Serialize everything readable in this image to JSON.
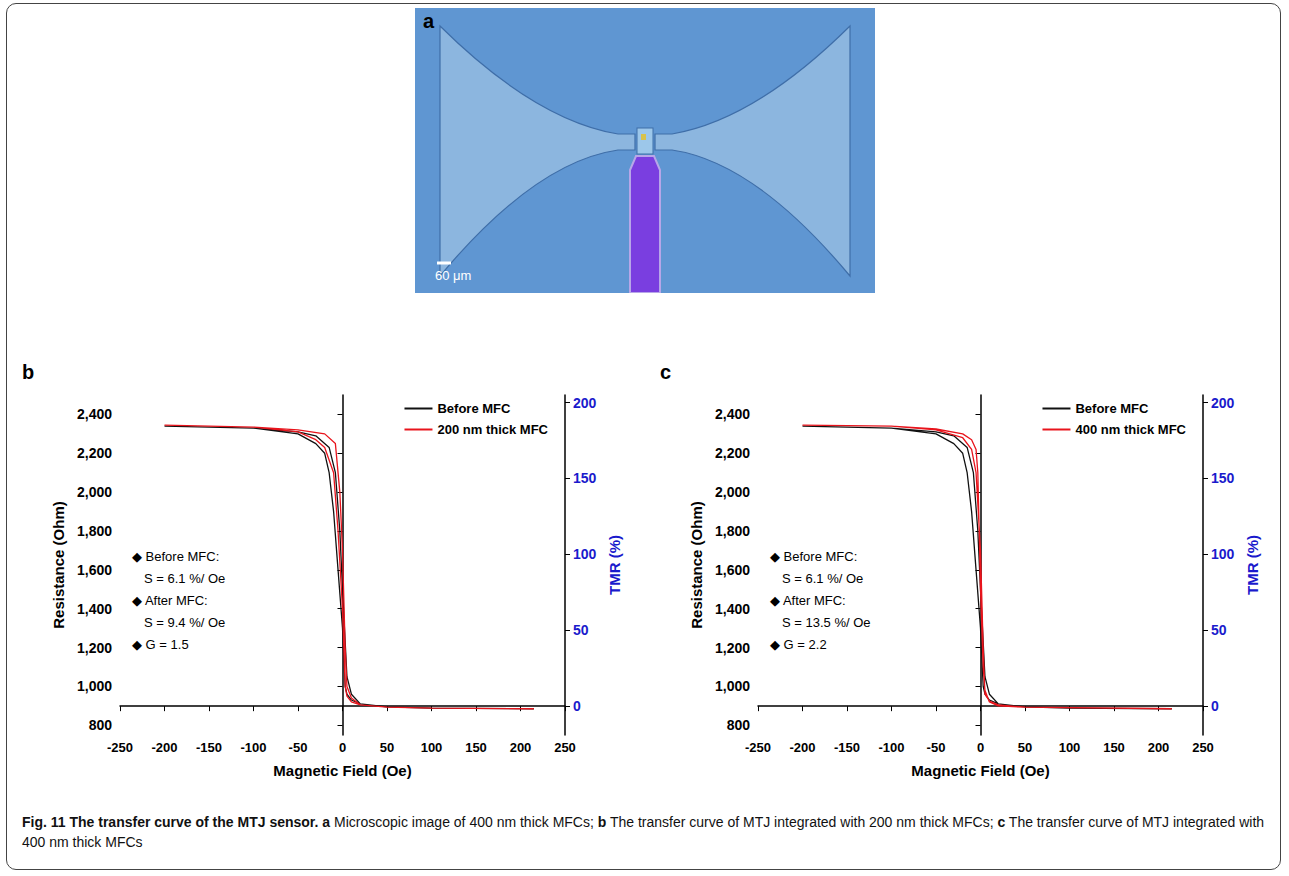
{
  "panel_a": {
    "label": "a",
    "scale_bar": "60 μm"
  },
  "caption": {
    "title": "Fig. 11 The transfer curve of the MTJ sensor.",
    "parts": [
      {
        "label": "a",
        "text": "Microscopic image of 400 nm thick MFCs;"
      },
      {
        "label": "b",
        "text": "The transfer curve of MTJ integrated with 200 nm thick MFCs;"
      },
      {
        "label": "c",
        "text": "The transfer curve of MTJ integrated with 400 nm thick MFCs"
      }
    ]
  },
  "chart_data": [
    {
      "type": "line",
      "panel_label": "b",
      "xlabel": "Magnetic Field (Oe)",
      "ylabel": "Resistance (Ohm)",
      "y2label": "TMR (%)",
      "xlim": [
        -250,
        250
      ],
      "xticks": [
        -250,
        -200,
        -150,
        -100,
        -50,
        0,
        50,
        100,
        150,
        200,
        250
      ],
      "ylim": [
        750,
        2500
      ],
      "yticks": [
        800,
        1000,
        1200,
        1400,
        1600,
        1800,
        2000,
        2200,
        2400
      ],
      "y2lim": [
        -19,
        205
      ],
      "y2ticks": [
        0,
        50,
        100,
        150,
        200
      ],
      "grid": false,
      "legend": "upper right",
      "annotations": [
        "◆ Before MFC:",
        "S = 6.1 %/ Oe",
        "◆ After MFC:",
        "S = 9.4 %/ Oe",
        "◆ G = 1.5"
      ],
      "series": [
        {
          "name": "Before MFC",
          "color": "#111111",
          "line_style": "solid",
          "x": [
            -200,
            -100,
            -50,
            -30,
            -20,
            -15,
            -10,
            -5,
            0,
            3,
            5,
            10,
            20,
            50,
            100,
            215,
            100,
            50,
            20,
            10,
            5,
            0,
            -3,
            -8,
            -15,
            -30,
            -50,
            -100,
            -200
          ],
          "values": [
            2340,
            2330,
            2300,
            2250,
            2200,
            2100,
            1900,
            1600,
            1300,
            1000,
            960,
            930,
            910,
            895,
            888,
            885,
            888,
            895,
            910,
            960,
            1050,
            1500,
            1800,
            2100,
            2230,
            2290,
            2310,
            2330,
            2340
          ]
        },
        {
          "name": "200 nm thick MFC",
          "color": "#e8141c",
          "line_style": "solid",
          "x": [
            -200,
            -100,
            -50,
            -30,
            -20,
            -10,
            -5,
            0,
            3,
            5,
            10,
            20,
            50,
            100,
            215,
            100,
            50,
            20,
            10,
            5,
            3,
            0,
            -3,
            -8,
            -20,
            -50,
            -100,
            -200
          ],
          "values": [
            2345,
            2335,
            2310,
            2270,
            2230,
            2100,
            1800,
            1400,
            1000,
            950,
            920,
            905,
            893,
            888,
            885,
            888,
            893,
            905,
            940,
            1000,
            1200,
            1700,
            2000,
            2250,
            2300,
            2320,
            2335,
            2345
          ]
        }
      ]
    },
    {
      "type": "line",
      "panel_label": "c",
      "xlabel": "Magnetic Field (Oe)",
      "ylabel": "Resistance (Ohm)",
      "y2label": "TMR (%)",
      "xlim": [
        -250,
        250
      ],
      "xticks": [
        -250,
        -200,
        -150,
        -100,
        -50,
        0,
        50,
        100,
        150,
        200,
        250
      ],
      "ylim": [
        750,
        2500
      ],
      "yticks": [
        800,
        1000,
        1200,
        1400,
        1600,
        1800,
        2000,
        2200,
        2400
      ],
      "y2lim": [
        -19,
        205
      ],
      "y2ticks": [
        0,
        50,
        100,
        150,
        200
      ],
      "grid": false,
      "legend": "upper right",
      "annotations": [
        "◆ Before MFC:",
        "S = 6.1 %/ Oe",
        "◆ After MFC:",
        "S = 13.5 %/ Oe",
        "◆ G = 2.2"
      ],
      "series": [
        {
          "name": "Before MFC",
          "color": "#111111",
          "line_style": "solid",
          "x": [
            -200,
            -100,
            -50,
            -30,
            -20,
            -15,
            -10,
            -5,
            0,
            3,
            5,
            10,
            20,
            50,
            100,
            215,
            100,
            50,
            20,
            10,
            5,
            0,
            -3,
            -8,
            -15,
            -30,
            -50,
            -100,
            -200
          ],
          "values": [
            2340,
            2330,
            2300,
            2250,
            2200,
            2100,
            1900,
            1600,
            1300,
            1000,
            960,
            930,
            910,
            895,
            888,
            885,
            888,
            895,
            910,
            960,
            1050,
            1500,
            1800,
            2100,
            2230,
            2290,
            2310,
            2330,
            2340
          ]
        },
        {
          "name": "400 nm thick MFC",
          "color": "#e8141c",
          "line_style": "solid",
          "x": [
            -200,
            -100,
            -50,
            -20,
            -10,
            -5,
            0,
            3,
            5,
            10,
            20,
            50,
            215,
            50,
            20,
            10,
            5,
            3,
            0,
            -3,
            -5,
            -10,
            -20,
            -50,
            -100,
            -200
          ],
          "values": [
            2345,
            2340,
            2320,
            2280,
            2220,
            2100,
            1700,
            1200,
            960,
            925,
            905,
            893,
            885,
            893,
            900,
            920,
            980,
            1100,
            1500,
            2100,
            2220,
            2270,
            2300,
            2325,
            2340,
            2345
          ]
        }
      ]
    }
  ]
}
